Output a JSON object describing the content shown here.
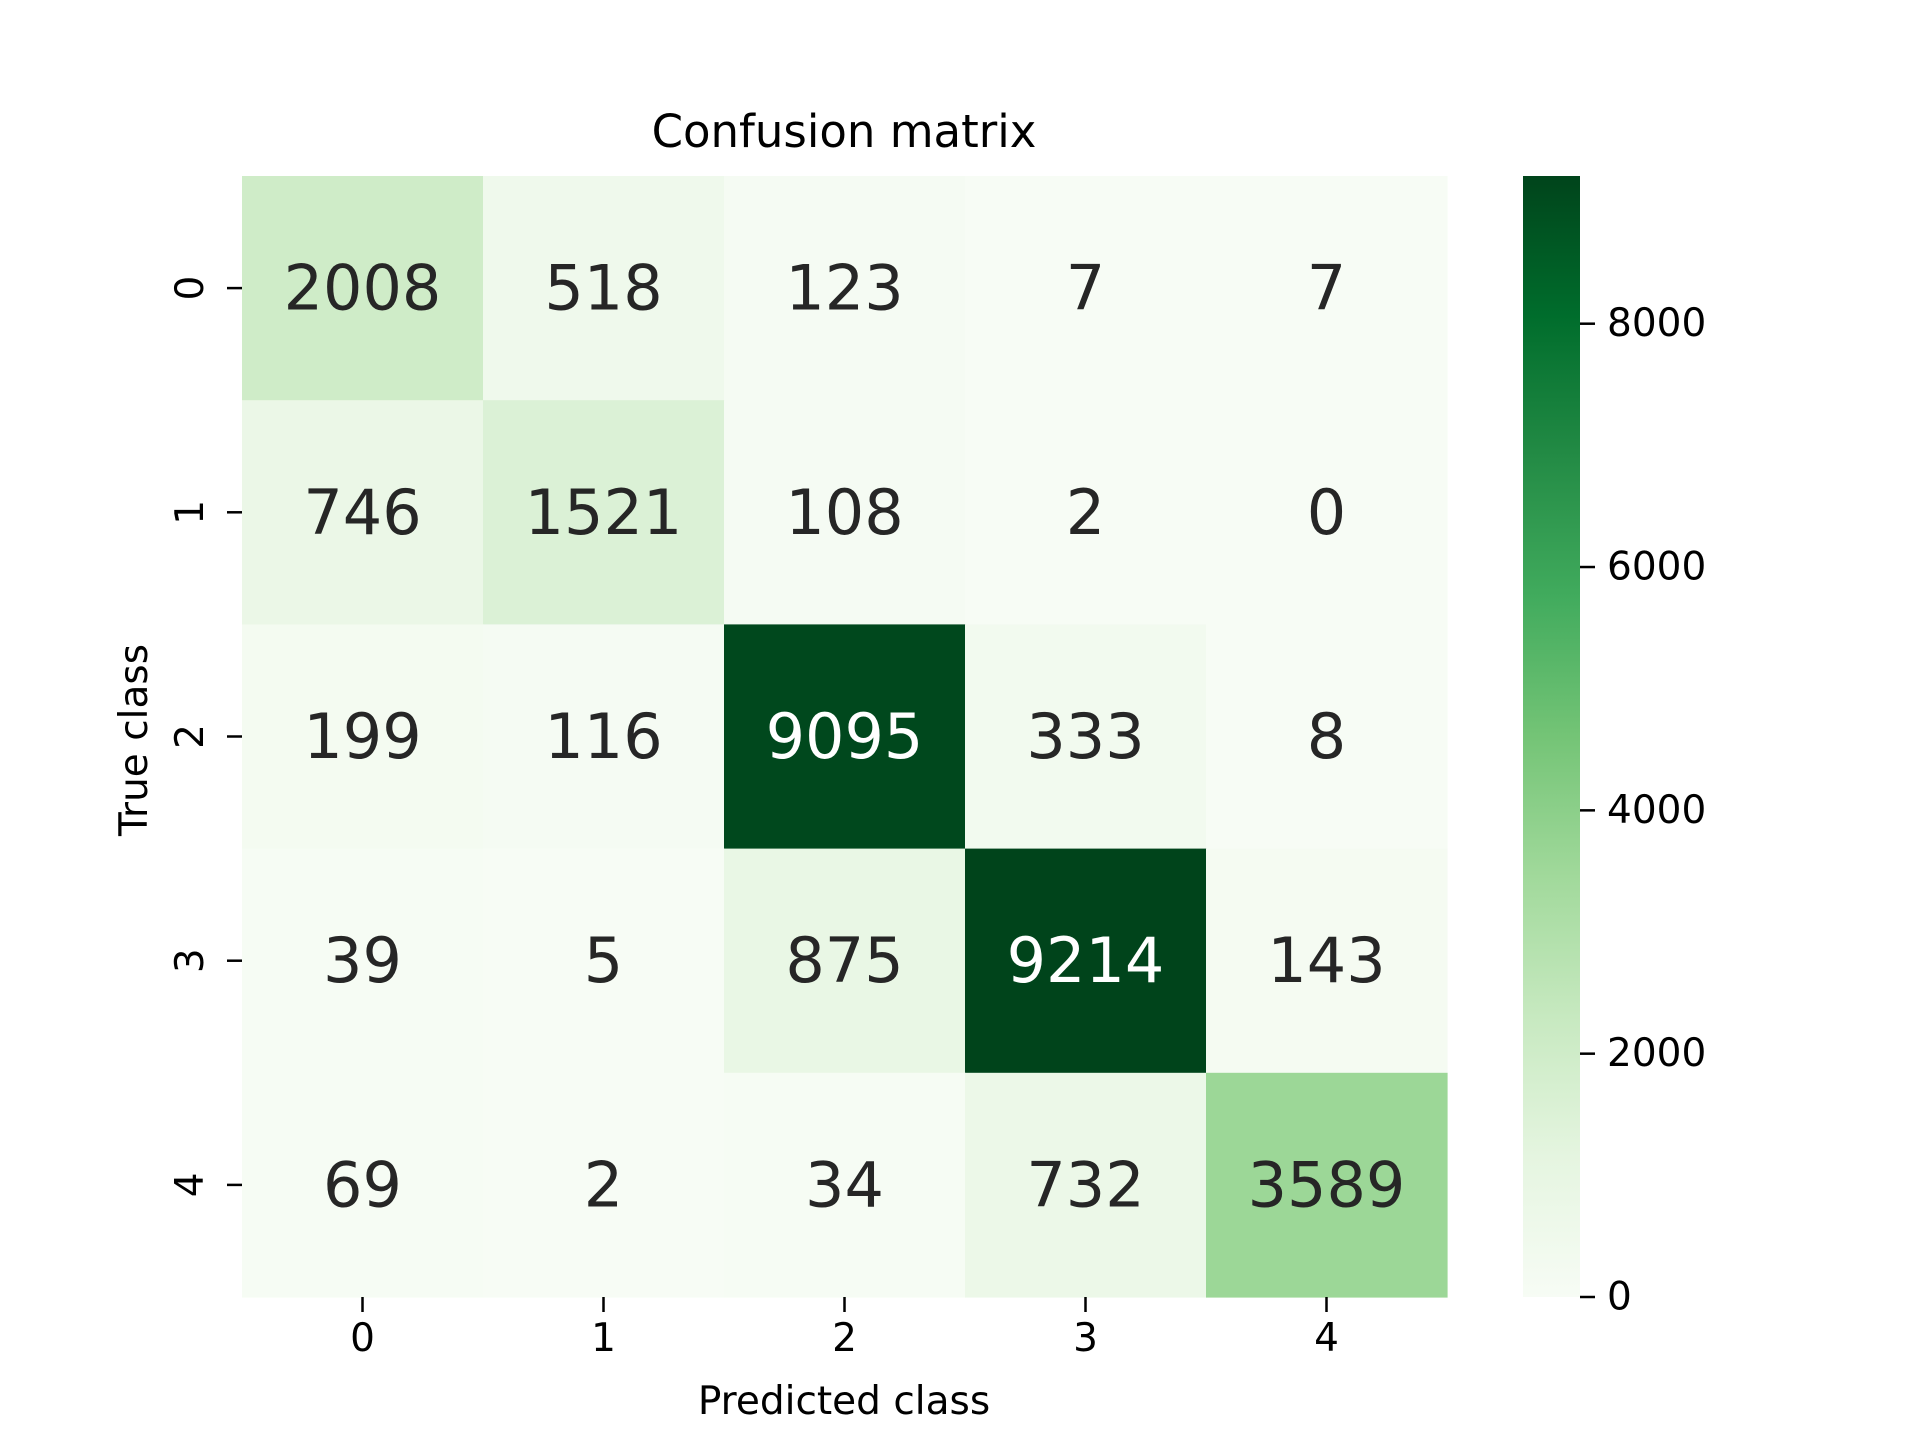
{
  "chart_data": {
    "type": "heatmap",
    "title": "Confusion matrix",
    "xlabel": "Predicted class",
    "ylabel": "True class",
    "x_categories": [
      "0",
      "1",
      "2",
      "3",
      "4"
    ],
    "y_categories": [
      "0",
      "1",
      "2",
      "3",
      "4"
    ],
    "values": [
      [
        2008,
        518,
        123,
        7,
        7
      ],
      [
        746,
        1521,
        108,
        2,
        0
      ],
      [
        199,
        116,
        9095,
        333,
        8
      ],
      [
        39,
        5,
        875,
        9214,
        143
      ],
      [
        69,
        2,
        34,
        732,
        3589
      ]
    ],
    "colorbar": {
      "colormap": "Greens",
      "range": [
        0,
        9214
      ],
      "ticks": [
        0,
        2000,
        4000,
        6000,
        8000
      ],
      "tick_labels": [
        "0",
        "2000",
        "4000",
        "6000",
        "8000"
      ]
    },
    "grid": false,
    "legend": "colorbar-right"
  }
}
